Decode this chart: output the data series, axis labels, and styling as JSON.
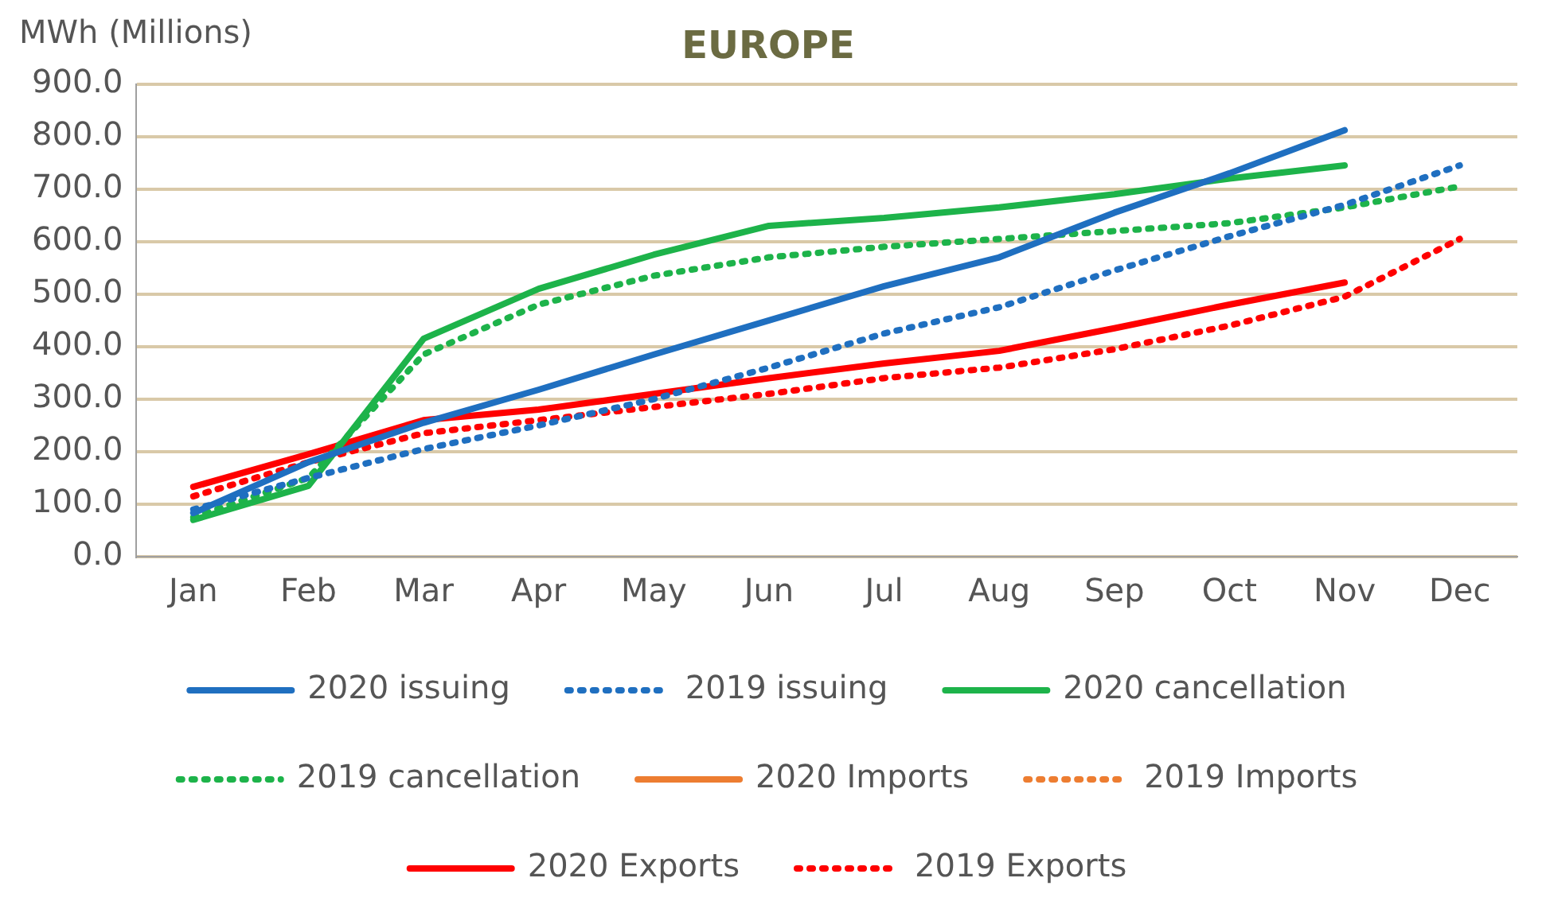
{
  "chart_data": {
    "type": "line",
    "title": "EUROPE",
    "ylabel": "MWh (Millions)",
    "categories": [
      "Jan",
      "Feb",
      "Mar",
      "Apr",
      "May",
      "Jun",
      "Jul",
      "Aug",
      "Sep",
      "Oct",
      "Nov",
      "Dec"
    ],
    "series": [
      {
        "name": "2020 issuing",
        "color": "#1f6fc0",
        "line_style": "solid",
        "values": [
          83,
          180,
          255,
          318,
          385,
          450,
          515,
          570,
          655,
          730,
          812,
          null
        ]
      },
      {
        "name": "2019 issuing",
        "color": "#1f6fc0",
        "line_style": "dotted",
        "values": [
          90,
          150,
          205,
          250,
          300,
          360,
          425,
          475,
          545,
          610,
          670,
          745
        ]
      },
      {
        "name": "2020 cancellation",
        "color": "#1db34a",
        "line_style": "solid",
        "values": [
          70,
          135,
          415,
          510,
          575,
          630,
          645,
          665,
          690,
          720,
          745,
          null
        ]
      },
      {
        "name": "2019 cancellation",
        "color": "#1db34a",
        "line_style": "dotted",
        "values": [
          75,
          150,
          385,
          480,
          535,
          570,
          590,
          605,
          620,
          635,
          665,
          705
        ]
      },
      {
        "name": "2020 Imports",
        "color": "#ed7d31",
        "line_style": "solid",
        "values": [
          null,
          null,
          null,
          null,
          null,
          null,
          null,
          null,
          null,
          null,
          null,
          null
        ]
      },
      {
        "name": "2019 Imports",
        "color": "#ed7d31",
        "line_style": "dotted",
        "values": [
          null,
          null,
          null,
          null,
          null,
          null,
          null,
          null,
          null,
          null,
          null,
          null
        ]
      },
      {
        "name": "2020 Exports",
        "color": "#ff0000",
        "line_style": "solid",
        "values": [
          133,
          195,
          260,
          280,
          310,
          340,
          368,
          392,
          435,
          480,
          522,
          null
        ]
      },
      {
        "name": "2019 Exports",
        "color": "#ff0000",
        "line_style": "dotted",
        "values": [
          115,
          180,
          235,
          260,
          285,
          310,
          340,
          360,
          395,
          440,
          495,
          605
        ]
      }
    ],
    "ylim": [
      0,
      900
    ],
    "yticks": [
      {
        "value": 0,
        "label": "0.0"
      },
      {
        "value": 100,
        "label": "100.0"
      },
      {
        "value": 200,
        "label": "200.0"
      },
      {
        "value": 300,
        "label": "300.0"
      },
      {
        "value": 400,
        "label": "400.0"
      },
      {
        "value": 500,
        "label": "500.0"
      },
      {
        "value": 600,
        "label": "600.0"
      },
      {
        "value": 700,
        "label": "700.0"
      },
      {
        "value": 800,
        "label": "800.0"
      },
      {
        "value": 900,
        "label": "900.0"
      }
    ],
    "grid": "y",
    "legend": "bottom",
    "marker": "none"
  }
}
